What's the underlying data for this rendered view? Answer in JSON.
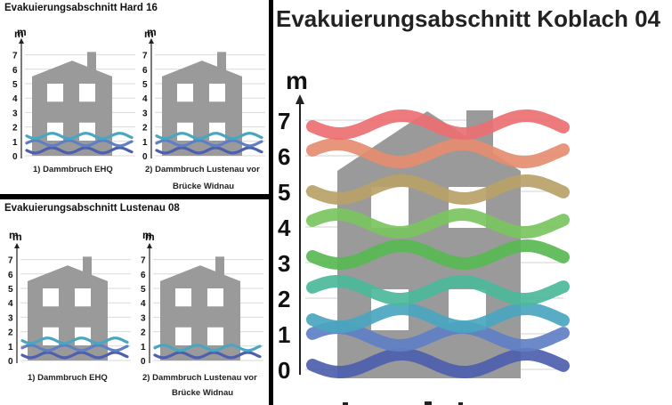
{
  "colors": {
    "house": "#9a9a9a",
    "window": "#ffffff",
    "grid": "#d9d9d9",
    "axis": "#222222",
    "level_colors": [
      "#4e5fae",
      "#5f7fc4",
      "#4aa6c0",
      "#4bb89a",
      "#58b852",
      "#7ac45f",
      "#b8a268",
      "#e58c70",
      "#ec6f72"
    ]
  },
  "panels": [
    {
      "title": "Evakuierungsabschnitt Hard 16",
      "unit": "m",
      "ticks": [
        "7",
        "6",
        "5",
        "4",
        "3",
        "2",
        "1",
        "0"
      ],
      "scenarios": [
        {
          "caption_lines": [
            "1) Dammbruch EHQ"
          ],
          "water_level_m": 1.6
        },
        {
          "caption_lines": [
            "2) Dammbruch Lustenau vor",
            "Brücke Widnau"
          ],
          "water_level_m": 1.6
        }
      ]
    },
    {
      "title": "Evakuierungsabschnitt Lustenau 08",
      "unit": "m",
      "ticks": [
        "7",
        "6",
        "5",
        "4",
        "3",
        "2",
        "1",
        "0"
      ],
      "scenarios": [
        {
          "caption_lines": [
            "1) Dammbruch EHQ"
          ],
          "water_level_m": 1.6
        },
        {
          "caption_lines": [
            "2) Dammbruch Lustenau vor",
            "Brücke Widnau"
          ],
          "water_level_m": 1.0
        }
      ]
    }
  ],
  "main": {
    "title": "Evakuierungsabschnitt Koblach 04",
    "unit": "m",
    "ticks": [
      "7",
      "6",
      "5",
      "4",
      "3",
      "2",
      "1",
      "0"
    ],
    "water_level_m": 7
  }
}
